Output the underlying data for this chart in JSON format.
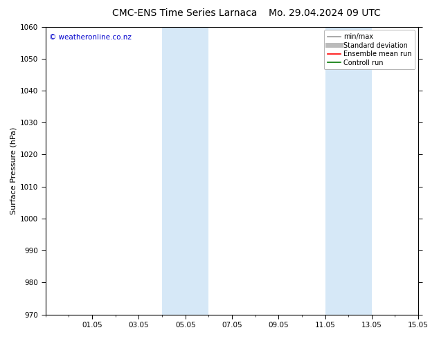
{
  "title": "CMC-ENS Time Series Larnaca",
  "title2": "Mo. 29.04.2024 09 UTC",
  "ylabel": "Surface Pressure (hPa)",
  "ylim": [
    970,
    1060
  ],
  "yticks": [
    970,
    980,
    990,
    1000,
    1010,
    1020,
    1030,
    1040,
    1050,
    1060
  ],
  "xlim_start": 0,
  "xlim_end": 16,
  "xtick_labels": [
    "01.05",
    "03.05",
    "05.05",
    "07.05",
    "09.05",
    "11.05",
    "13.05",
    "15.05"
  ],
  "xtick_positions": [
    2,
    4,
    6,
    8,
    10,
    12,
    14,
    16
  ],
  "shaded_bands": [
    {
      "x_start": 5,
      "x_end": 7
    },
    {
      "x_start": 12,
      "x_end": 14
    }
  ],
  "shade_color": "#d6e8f7",
  "watermark_text": "© weatheronline.co.nz",
  "watermark_color": "#0000cc",
  "legend_entries": [
    {
      "label": "min/max",
      "color": "#999999",
      "lw": 1.2,
      "ls": "-"
    },
    {
      "label": "Standard deviation",
      "color": "#bbbbbb",
      "lw": 5,
      "ls": "-"
    },
    {
      "label": "Ensemble mean run",
      "color": "#ff0000",
      "lw": 1.2,
      "ls": "-"
    },
    {
      "label": "Controll run",
      "color": "#007700",
      "lw": 1.2,
      "ls": "-"
    }
  ],
  "bg_color": "#ffffff",
  "plot_bg_color": "#ffffff",
  "title_fontsize": 10,
  "axis_label_fontsize": 8,
  "tick_fontsize": 7.5,
  "watermark_fontsize": 7.5,
  "legend_fontsize": 7
}
